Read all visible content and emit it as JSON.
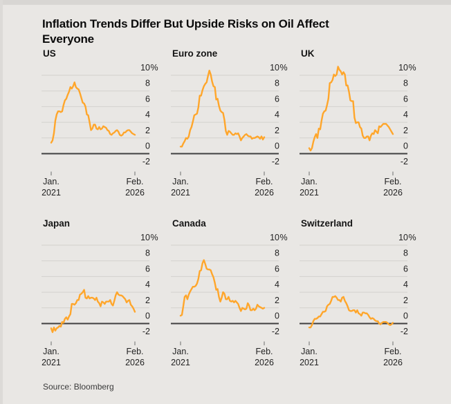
{
  "title": "Inflation Trends Differ But Upside Risks on Oil Affect\nEveryone",
  "source": "Source: Bloomberg",
  "colors": {
    "background": "#e9e7e4",
    "top_band": "#d8d6d3",
    "line": "#ffa62b",
    "grid": "#d3d1cd",
    "zero_line": "#3f3f3f",
    "tick": "#9a9a9a",
    "text": "#141414"
  },
  "chart_data": {
    "type": "line",
    "layout": "3x2 small multiples, shared axes",
    "title": "Inflation Trends Differ But Upside Risks on Oil Affect Everyone",
    "x_axis": {
      "frequency": "monthly",
      "start_label": [
        "Jan.",
        "2021"
      ],
      "end_label": [
        "Feb.",
        "2026"
      ]
    },
    "y_axis": {
      "ticks": [
        10,
        8,
        6,
        4,
        2,
        0,
        -2
      ],
      "tick_labels": [
        "10",
        "8",
        "6",
        "4",
        "2",
        "0",
        "-2"
      ],
      "unit_suffix": "%",
      "range": [
        -2,
        11
      ],
      "grid": true,
      "zero_line_emphasized": true
    },
    "series": [
      {
        "name": "US",
        "values": [
          1.4,
          1.7,
          2.6,
          4.2,
          5.0,
          5.4,
          5.4,
          5.3,
          5.4,
          6.2,
          6.8,
          7.0,
          7.5,
          7.9,
          8.5,
          8.3,
          8.6,
          9.1,
          8.5,
          8.3,
          8.2,
          7.7,
          7.1,
          6.5,
          6.4,
          6.0,
          5.0,
          4.9,
          4.0,
          3.0,
          3.2,
          3.7,
          3.7,
          3.2,
          3.1,
          3.4,
          3.1,
          3.2,
          3.5,
          3.4,
          3.3,
          3.0,
          2.9,
          2.5,
          2.4,
          2.6,
          2.7,
          2.9,
          3.0,
          2.8,
          2.4,
          2.3,
          2.4,
          2.7,
          2.7,
          2.9,
          3.0,
          3.0,
          2.8,
          2.6,
          2.5,
          2.4
        ]
      },
      {
        "name": "Euro zone",
        "values": [
          0.9,
          0.9,
          1.3,
          1.6,
          2.0,
          1.9,
          2.2,
          3.0,
          3.4,
          4.1,
          4.9,
          5.0,
          5.1,
          5.9,
          7.4,
          7.4,
          8.1,
          8.6,
          8.9,
          9.1,
          9.9,
          10.6,
          10.1,
          9.2,
          8.6,
          8.5,
          6.9,
          7.0,
          6.1,
          5.5,
          5.3,
          5.2,
          4.3,
          2.9,
          2.4,
          2.9,
          2.8,
          2.6,
          2.4,
          2.4,
          2.6,
          2.5,
          2.6,
          2.2,
          1.7,
          2.0,
          2.2,
          2.4,
          2.5,
          2.3,
          2.2,
          2.2,
          1.9,
          2.0,
          2.0,
          2.1,
          2.2,
          2.1,
          1.9,
          2.2,
          1.8,
          2.1
        ]
      },
      {
        "name": "UK",
        "values": [
          0.7,
          0.4,
          0.7,
          1.5,
          2.1,
          2.5,
          2.0,
          3.2,
          3.1,
          4.2,
          5.1,
          5.4,
          5.5,
          6.2,
          7.0,
          9.0,
          9.1,
          9.4,
          10.1,
          9.9,
          10.1,
          11.1,
          10.7,
          10.5,
          10.1,
          10.4,
          10.1,
          8.7,
          8.7,
          7.9,
          6.8,
          6.7,
          6.7,
          4.6,
          3.9,
          4.0,
          4.0,
          3.4,
          3.2,
          2.3,
          2.0,
          2.0,
          2.2,
          2.2,
          1.7,
          2.3,
          2.6,
          2.5,
          3.0,
          2.8,
          2.6,
          3.5,
          3.4,
          3.6,
          3.8,
          3.8,
          3.8,
          3.6,
          3.4,
          3.1,
          2.8,
          2.5
        ]
      },
      {
        "name": "Japan",
        "values": [
          -0.6,
          -1.1,
          -0.5,
          -0.9,
          -0.6,
          -0.5,
          -0.3,
          -0.4,
          0.2,
          0.1,
          0.6,
          0.8,
          0.5,
          0.9,
          1.2,
          2.5,
          2.5,
          2.4,
          2.6,
          3.0,
          3.0,
          3.7,
          3.8,
          4.0,
          4.3,
          3.3,
          3.2,
          3.5,
          3.2,
          3.3,
          3.3,
          3.2,
          3.0,
          3.3,
          2.8,
          2.6,
          2.2,
          2.8,
          2.7,
          2.5,
          2.8,
          2.8,
          2.8,
          3.0,
          2.5,
          2.3,
          2.9,
          3.6,
          4.0,
          3.7,
          3.6,
          3.6,
          3.5,
          3.3,
          3.1,
          2.7,
          2.9,
          3.0,
          2.4,
          2.2,
          1.9,
          1.5
        ]
      },
      {
        "name": "Canada",
        "values": [
          1.0,
          1.1,
          2.2,
          3.4,
          3.6,
          3.1,
          3.7,
          4.1,
          4.4,
          4.7,
          4.7,
          4.8,
          5.1,
          5.7,
          6.7,
          6.8,
          7.7,
          8.1,
          7.6,
          7.0,
          6.9,
          6.9,
          6.8,
          6.3,
          5.9,
          5.2,
          4.3,
          4.4,
          3.4,
          2.8,
          3.3,
          4.0,
          3.8,
          3.1,
          3.1,
          3.4,
          2.9,
          2.8,
          2.9,
          2.7,
          2.9,
          2.7,
          2.5,
          2.0,
          1.6,
          2.0,
          1.9,
          1.8,
          1.9,
          2.6,
          2.3,
          1.7,
          1.7,
          1.9,
          1.7,
          1.9,
          2.4,
          2.2,
          2.1,
          2.0,
          1.9,
          2.0
        ]
      },
      {
        "name": "Switzerland",
        "values": [
          -0.5,
          -0.5,
          -0.2,
          0.3,
          0.6,
          0.6,
          0.7,
          0.9,
          0.9,
          1.2,
          1.5,
          1.5,
          1.6,
          2.2,
          2.4,
          2.5,
          2.9,
          3.4,
          3.4,
          3.5,
          3.3,
          3.0,
          3.0,
          2.8,
          3.3,
          3.4,
          2.9,
          2.6,
          2.2,
          1.7,
          1.6,
          1.6,
          1.7,
          1.7,
          1.4,
          1.7,
          1.3,
          1.2,
          1.0,
          1.4,
          1.4,
          1.3,
          1.3,
          1.1,
          0.8,
          0.6,
          0.7,
          0.6,
          0.4,
          0.3,
          0.3,
          0.0,
          -0.1,
          0.1,
          0.2,
          0.2,
          0.2,
          0.1,
          -0.1,
          -0.2,
          -0.1,
          0.1
        ]
      }
    ]
  }
}
